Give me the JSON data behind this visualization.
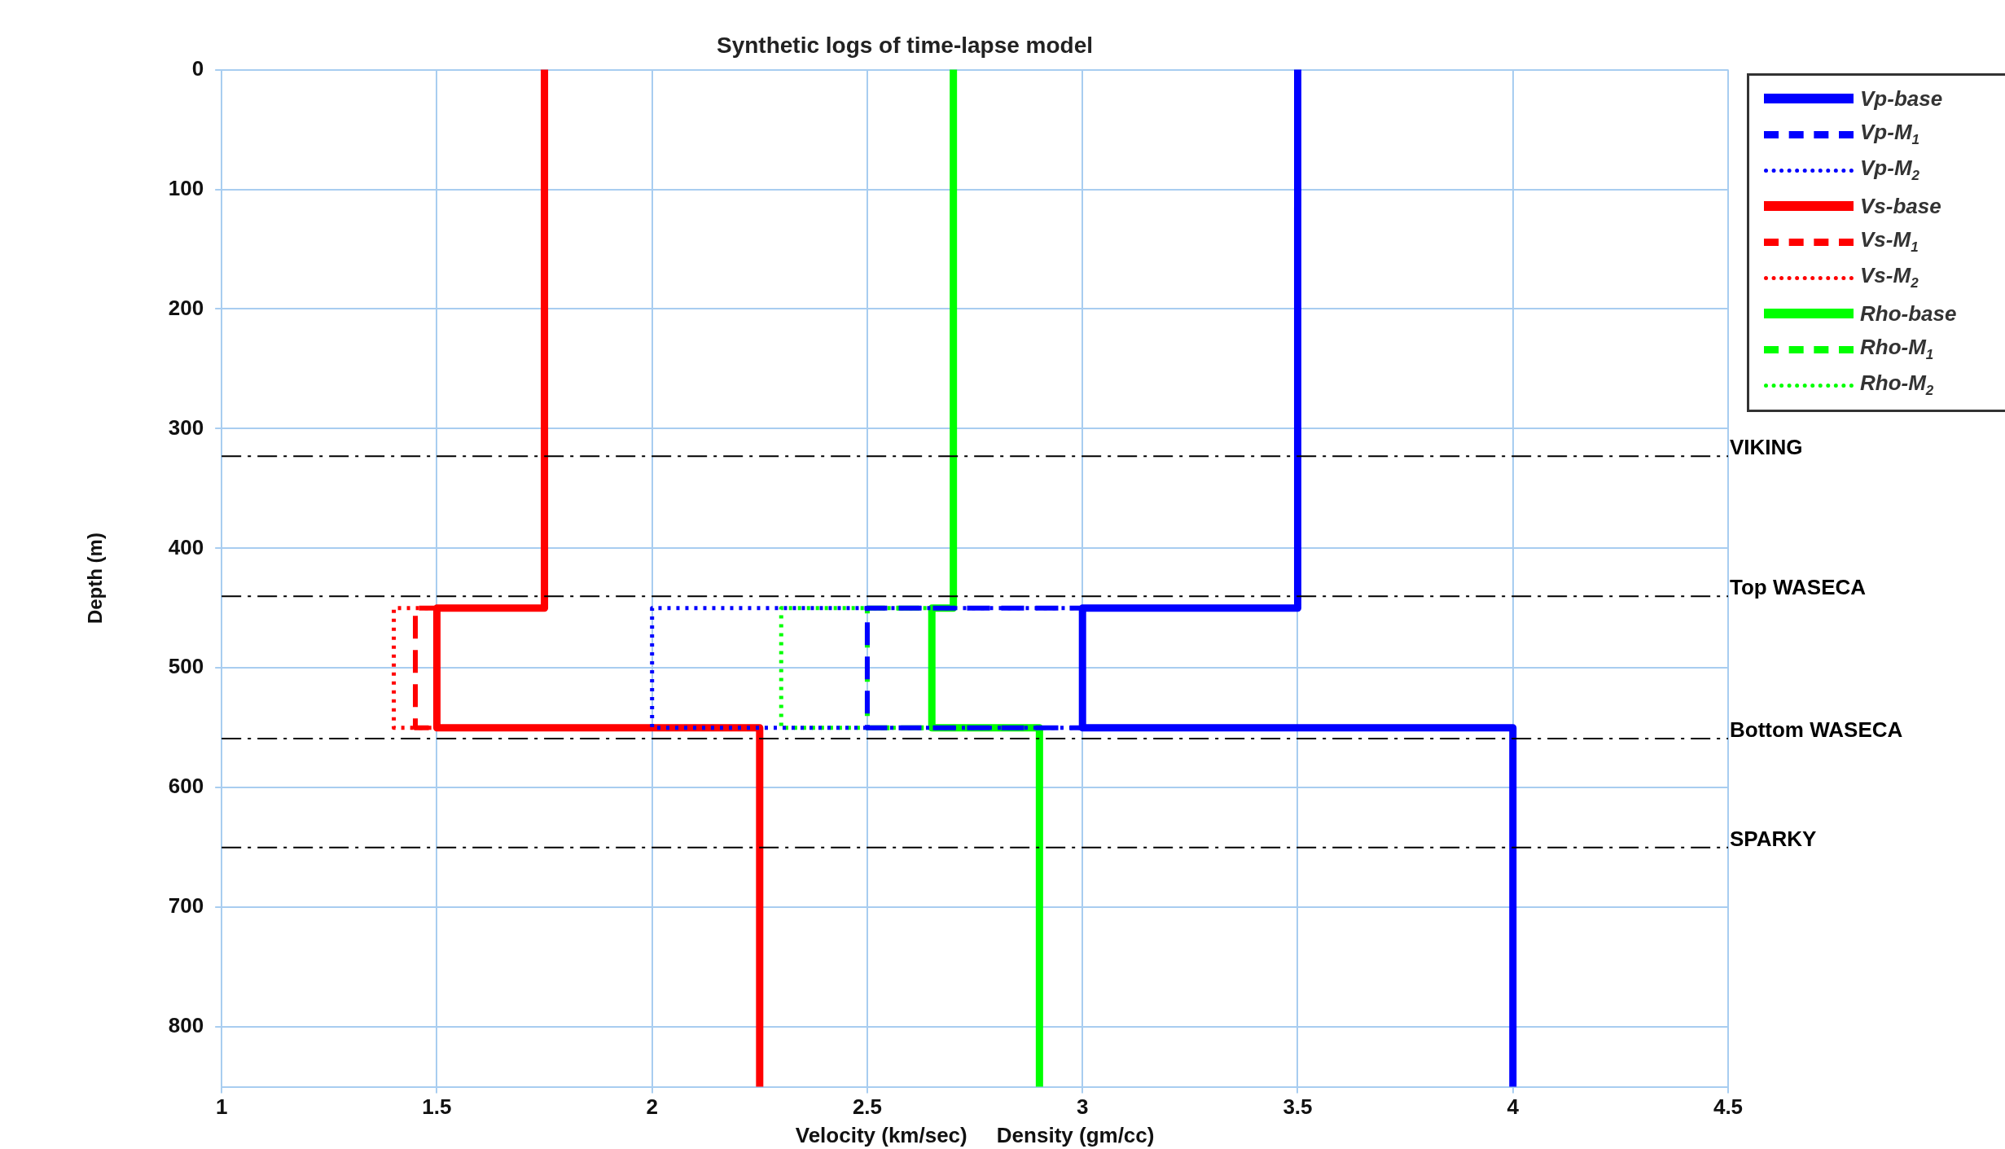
{
  "chart_data": {
    "type": "line",
    "title": "Synthetic logs of time-lapse model",
    "xlabel": "Velocity (km/sec)     Density (gm/cc)",
    "ylabel": "Depth (m)",
    "xlim": [
      1,
      4.5
    ],
    "xticks": [
      1,
      1.5,
      2,
      2.5,
      3,
      3.5,
      4,
      4.5
    ],
    "ylim": [
      850,
      0
    ],
    "yticks": [
      0,
      100,
      200,
      300,
      400,
      500,
      600,
      700,
      800
    ],
    "grid": true,
    "legend": "top right",
    "marker": "none",
    "series": [
      {
        "name": "Vp-base",
        "color": "#0000ff",
        "line_style": "solid",
        "x": [
          3.5,
          3.5,
          3.0,
          3.0,
          4.0,
          4.0
        ],
        "values": [
          0,
          450,
          450,
          550,
          550,
          850
        ]
      },
      {
        "name": "Vp-M$_{1}$",
        "color": "#0000ff",
        "line_style": "dashed",
        "x": [
          3.5,
          2.5,
          2.5,
          4.0
        ],
        "values": [
          450,
          450,
          550,
          550
        ]
      },
      {
        "name": "Vp-M$_{2}$",
        "color": "#0000ff",
        "line_style": "dotted",
        "x": [
          3.5,
          2.0,
          2.0,
          4.0
        ],
        "values": [
          450,
          450,
          550,
          550
        ]
      },
      {
        "name": "Vs-base",
        "color": "#ff0000",
        "line_style": "solid",
        "x": [
          1.75,
          1.75,
          1.5,
          1.5,
          2.25,
          2.25
        ],
        "values": [
          0,
          450,
          450,
          550,
          550,
          850
        ]
      },
      {
        "name": "Vs-M$_{1}$",
        "color": "#ff0000",
        "line_style": "dashed",
        "x": [
          1.75,
          1.45,
          1.45,
          2.25
        ],
        "values": [
          450,
          450,
          550,
          550
        ]
      },
      {
        "name": "Vs-M$_{2}$",
        "color": "#ff0000",
        "line_style": "dotted",
        "x": [
          1.75,
          1.4,
          1.4,
          2.25
        ],
        "values": [
          450,
          450,
          550,
          550
        ]
      },
      {
        "name": "Rho-base",
        "color": "#00ff00",
        "line_style": "solid",
        "x": [
          2.7,
          2.7,
          2.65,
          2.65,
          2.9,
          2.9
        ],
        "values": [
          0,
          450,
          450,
          550,
          550,
          850
        ]
      },
      {
        "name": "Rho-M$_{1}$",
        "color": "#00ff00",
        "line_style": "dashed",
        "x": [
          2.7,
          2.5,
          2.5,
          2.9
        ],
        "values": [
          450,
          450,
          550,
          550
        ]
      },
      {
        "name": "Rho-M$_{2}$",
        "color": "#00ff00",
        "line_style": "dotted",
        "x": [
          2.7,
          2.3,
          2.3,
          2.9
        ],
        "values": [
          450,
          450,
          550,
          550
        ]
      }
    ],
    "ref_lines": [
      {
        "axis": "y",
        "value": 323,
        "label": "VIKING",
        "color": "#000000",
        "line_style": "dashdot"
      },
      {
        "axis": "y",
        "value": 440,
        "label": "Top WASECA",
        "color": "#000000",
        "line_style": "dashdot"
      },
      {
        "axis": "y",
        "value": 559,
        "label": "Bottom WASECA",
        "color": "#000000",
        "line_style": "dashdot"
      },
      {
        "axis": "y",
        "value": 650,
        "label": "SPARKY",
        "color": "#000000",
        "line_style": "dashdot"
      }
    ]
  }
}
